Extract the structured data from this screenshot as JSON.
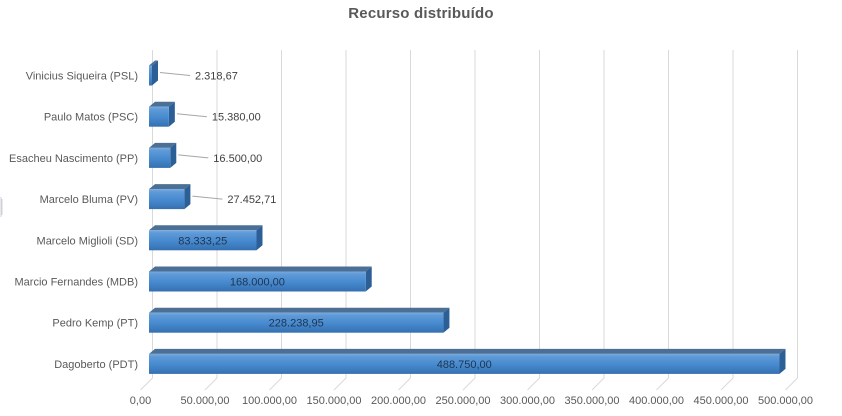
{
  "chart_data": {
    "type": "bar",
    "orientation": "horizontal",
    "style": "3d-bar",
    "title": "Recurso distribuído",
    "categories": [
      "Vinicius Siqueira (PSL)",
      "Paulo Matos (PSC)",
      "Esacheu Nascimento (PP)",
      "Marcelo Bluma (PV)",
      "Marcelo Miglioli (SD)",
      "Marcio Fernandes (MDB)",
      "Pedro Kemp (PT)",
      "Dagoberto (PDT)"
    ],
    "values": [
      2318.67,
      15380.0,
      16500.0,
      27452.71,
      83333.25,
      168000.0,
      228238.95,
      488750.0
    ],
    "value_labels": [
      "2.318,67",
      "15.380,00",
      "16.500,00",
      "27.452,71",
      "83.333,25",
      "168.000,00",
      "228.238,95",
      "488.750,00"
    ],
    "label_placement": [
      "outside",
      "outside",
      "outside",
      "outside",
      "inside",
      "inside",
      "inside",
      "inside"
    ],
    "x_ticks": [
      "0,00",
      "50.000,00",
      "100.000,00",
      "150.000,00",
      "200.000,00",
      "250.000,00",
      "300.000,00",
      "350.000,00",
      "400.000,00",
      "450.000,00",
      "500.000,00"
    ],
    "x_tick_values": [
      0,
      50000,
      100000,
      150000,
      200000,
      250000,
      300000,
      350000,
      400000,
      450000,
      500000
    ],
    "xlim": [
      0,
      500000
    ],
    "xlabel": "",
    "ylabel": "",
    "grid": "vertical",
    "legend": "none"
  },
  "colors": {
    "background": "#ffffff",
    "title_text": "#595959",
    "axis_text": "#595959",
    "gridline": "#d9d9d9",
    "bar_front_top": "#79aadf",
    "bar_front_light": "#5e9ad8",
    "bar_front_mid": "#4689ce",
    "bar_front_bottom": "#3570b0",
    "bar_top_face": "#4c7095",
    "bar_end_face": "#2d5f97",
    "data_label_inside": "#1f3550",
    "data_label_outside": "#404040",
    "leader_line": "#a6a6a6"
  }
}
